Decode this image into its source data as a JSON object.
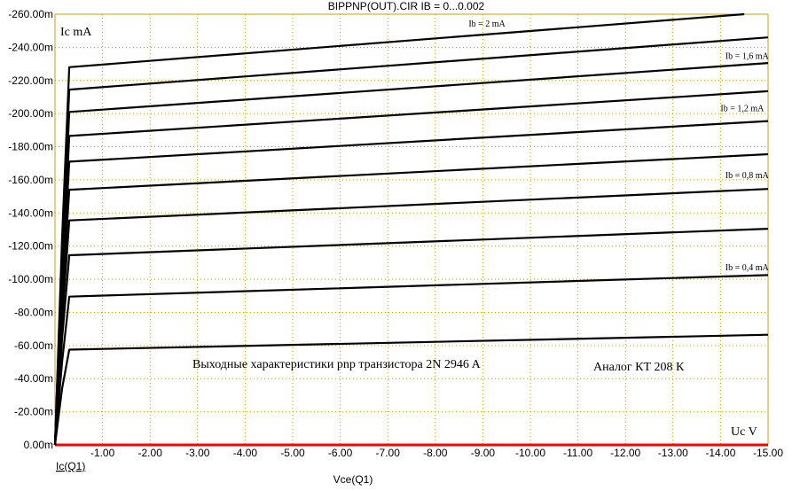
{
  "title": "BIPPNP(OUT).CIR IB = 0...0.002",
  "chart_data": {
    "type": "line",
    "title": "BIPPNP(OUT).CIR IB = 0...0.002",
    "xlabel": "Vce(Q1)",
    "ylabel": "Ic(Q1)",
    "xlim": [
      0.0,
      -15.0
    ],
    "ylim": [
      0.0,
      -0.26
    ],
    "x_ticks": [
      "-1.00",
      "-2.00",
      "-3.00",
      "-4.00",
      "-5.00",
      "-6.00",
      "-7.00",
      "-8.00",
      "-9.00",
      "-10.00",
      "-11.00",
      "-12.00",
      "-13.00",
      "-14.00",
      "-15.00"
    ],
    "y_ticks": [
      "0.00m",
      "-20.00m",
      "-40.00m",
      "-60.00m",
      "-80.00m",
      "-100.00m",
      "-120.00m",
      "-140.00m",
      "-160.00m",
      "-180.00m",
      "-200.00m",
      "-220.00m",
      "-240.00m",
      "-260.00m"
    ],
    "grid": true,
    "series": [
      {
        "values": [
          [
            0,
            0
          ],
          [
            -0.15,
            -0.034
          ],
          [
            -0.3,
            -0.0575
          ],
          [
            -15.0,
            -0.0665
          ]
        ]
      },
      {
        "values": [
          [
            0,
            0
          ],
          [
            -0.15,
            -0.05
          ],
          [
            -0.3,
            -0.0895
          ],
          [
            -15.0,
            -0.1025
          ]
        ]
      },
      {
        "values": [
          [
            0,
            0
          ],
          [
            -0.15,
            -0.064
          ],
          [
            -0.3,
            -0.1145
          ],
          [
            -15.0,
            -0.1305
          ]
        ]
      },
      {
        "values": [
          [
            0,
            0
          ],
          [
            -0.15,
            -0.075
          ],
          [
            -0.3,
            -0.1355
          ],
          [
            -15.0,
            -0.1545
          ]
        ]
      },
      {
        "values": [
          [
            0,
            0
          ],
          [
            -0.15,
            -0.085
          ],
          [
            -0.3,
            -0.154
          ],
          [
            -15.0,
            -0.1755
          ]
        ]
      },
      {
        "values": [
          [
            0,
            0
          ],
          [
            -0.15,
            -0.094
          ],
          [
            -0.3,
            -0.171
          ],
          [
            -15.0,
            -0.1955
          ]
        ]
      },
      {
        "values": [
          [
            0,
            0
          ],
          [
            -0.15,
            -0.102
          ],
          [
            -0.3,
            -0.1865
          ],
          [
            -15.0,
            -0.2135
          ]
        ]
      },
      {
        "values": [
          [
            0,
            0
          ],
          [
            -0.15,
            -0.11
          ],
          [
            -0.3,
            -0.201
          ],
          [
            -15.0,
            -0.2305
          ]
        ]
      },
      {
        "values": [
          [
            0,
            0
          ],
          [
            -0.15,
            -0.118
          ],
          [
            -0.3,
            -0.2145
          ],
          [
            -15.0,
            -0.246
          ]
        ]
      },
      {
        "values": [
          [
            0,
            0
          ],
          [
            -0.15,
            -0.125
          ],
          [
            -0.3,
            -0.228
          ],
          [
            -14.5,
            -0.26
          ]
        ]
      }
    ],
    "curve_labels": [
      {
        "text": "Ib = 2 mA",
        "x": -8.7,
        "y": -0.2525
      },
      {
        "text": "Ib = 1,6 mA",
        "x": -14.1,
        "y": -0.233
      },
      {
        "text": "Ib = 1,2 mA",
        "x": -14.0,
        "y": -0.2015
      },
      {
        "text": "Ib = 0,8 mA",
        "x": -14.1,
        "y": -0.161
      },
      {
        "text": "Ib = 0,4 mA",
        "x": -14.1,
        "y": -0.1055
      }
    ],
    "annotations": {
      "y_unit": "Ic mA",
      "x_unit": "Uc V",
      "caption": "Выходные характеристики pnp транзистора 2N   2946 A",
      "analog": "Аналог КТ 208 К"
    },
    "colors": {
      "series": "#000000",
      "grid": "#c8a000",
      "zero_line": "#ff0000"
    }
  }
}
